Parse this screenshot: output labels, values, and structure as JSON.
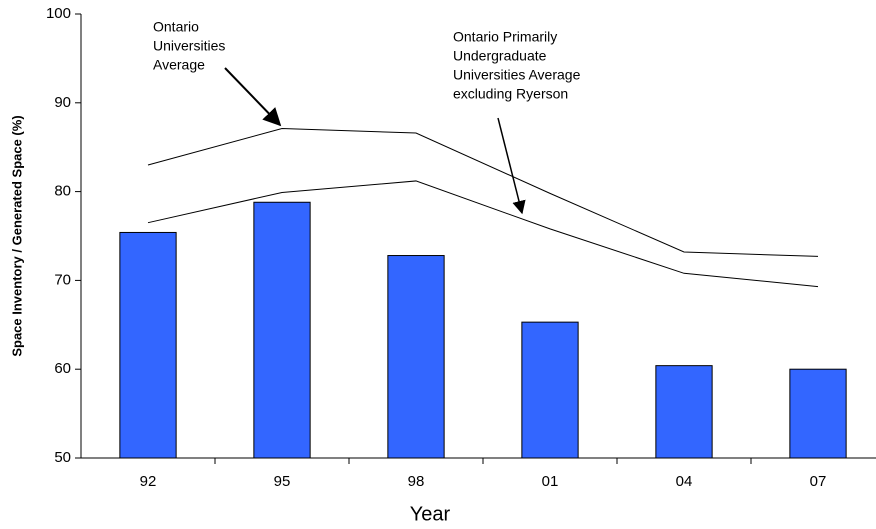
{
  "chart_data": {
    "type": "combo",
    "x_label": "Year",
    "y_label": "Space Inventory / Generated Space (%)",
    "categories": [
      "92",
      "95",
      "98",
      "01",
      "04",
      "07"
    ],
    "series": [
      {
        "type": "bar",
        "color": "#3366ff",
        "values": [
          75.4,
          78.8,
          72.8,
          65.3,
          60.4,
          60.0
        ]
      },
      {
        "type": "line",
        "color": "#000000",
        "values": [
          83.0,
          87.1,
          86.6,
          79.8,
          73.2,
          72.7
        ]
      },
      {
        "type": "line",
        "color": "#000000",
        "values": [
          76.5,
          79.9,
          81.2,
          75.8,
          70.8,
          69.3
        ]
      }
    ],
    "annotations": [
      {
        "lines": [
          "Ontario",
          "Universities",
          "Average"
        ]
      },
      {
        "lines": [
          "Ontario Primarily",
          "Undergraduate",
          "Universities Average",
          "excluding Ryerson"
        ]
      }
    ],
    "ylim": [
      50,
      100
    ],
    "yticks": [
      50,
      60,
      70,
      80,
      90,
      100
    ]
  }
}
